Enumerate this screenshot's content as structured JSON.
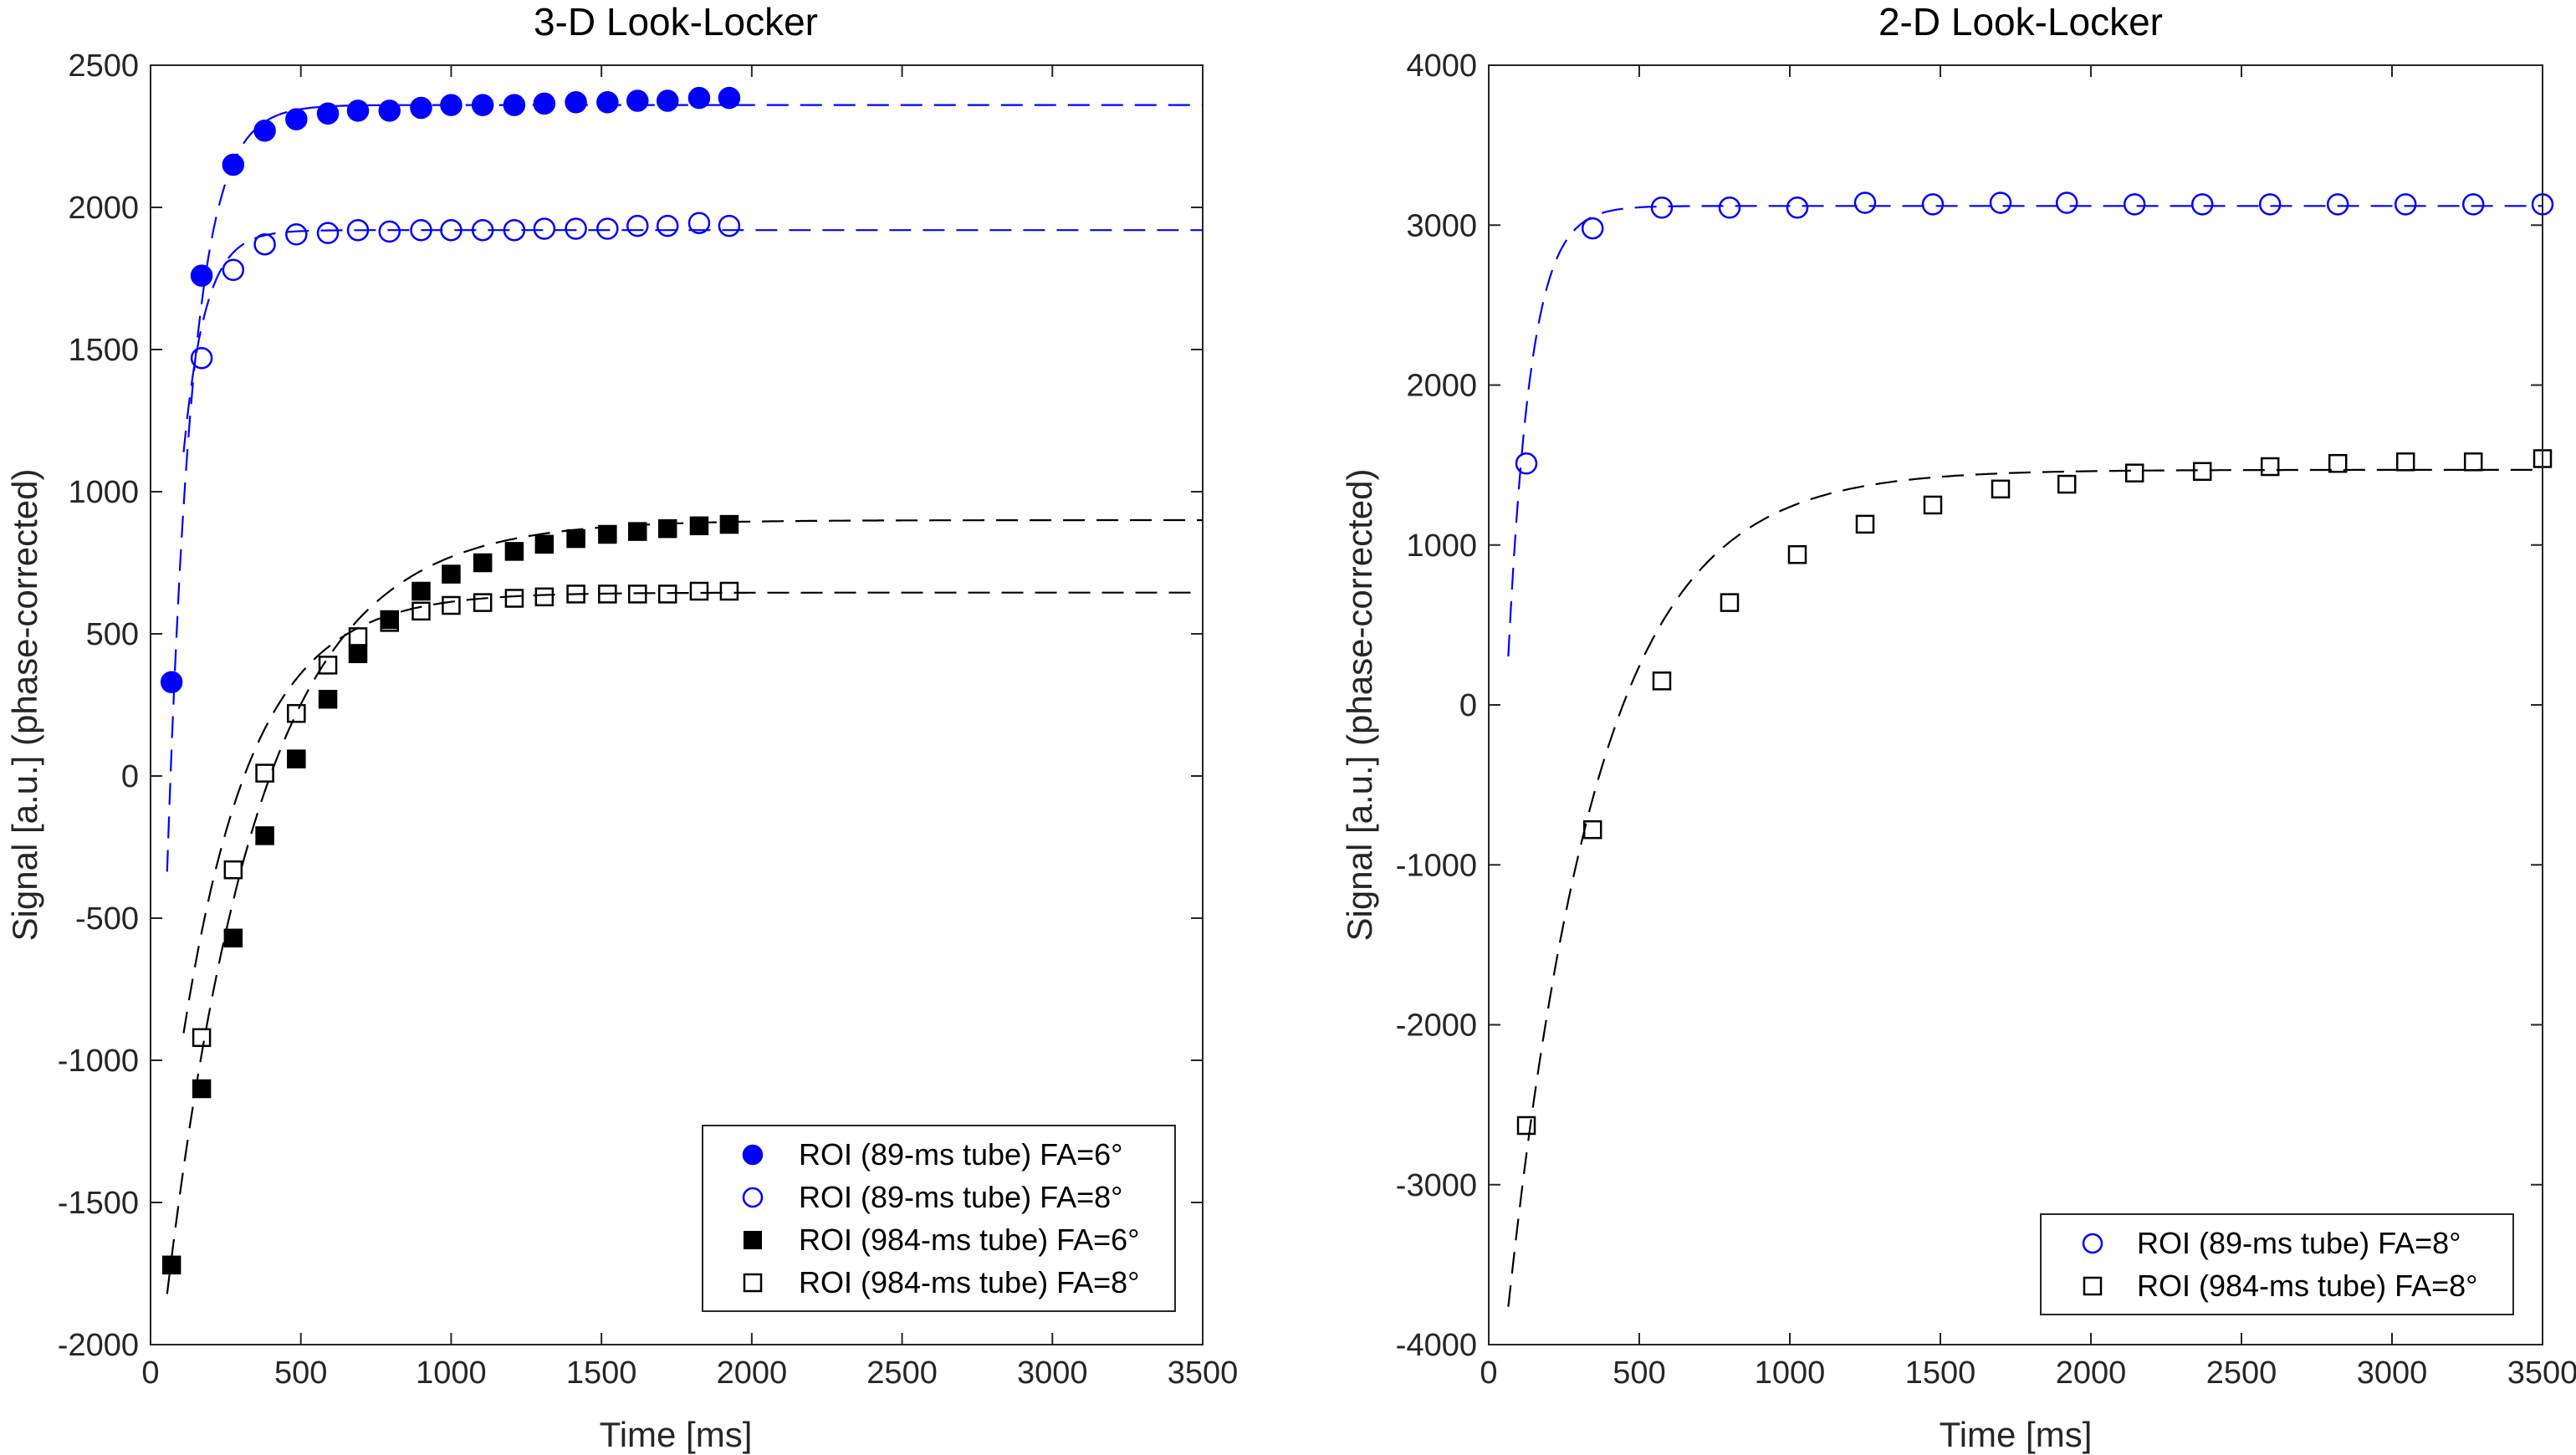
{
  "chart_data": [
    {
      "type": "scatter",
      "title": "3-D  Look-Locker",
      "xlabel": "Time [ms]",
      "ylabel": "Signal [a.u.] (phase-corrected)",
      "xlim": [
        0,
        3500
      ],
      "ylim": [
        -2000,
        2500
      ],
      "xticks": [
        0,
        500,
        1000,
        1500,
        2000,
        2500,
        3000,
        3500
      ],
      "yticks": [
        -2000,
        -1500,
        -1000,
        -500,
        0,
        500,
        1000,
        1500,
        2000,
        2500
      ],
      "legend_position": "bottom-right",
      "series": [
        {
          "name": "ROI (89-ms tube) FA=6°",
          "color": "#0000ff",
          "marker": "circle",
          "filled": true,
          "x": [
            70,
            170,
            275,
            380,
            485,
            590,
            690,
            795,
            900,
            1000,
            1105,
            1210,
            1310,
            1415,
            1520,
            1620,
            1720,
            1825,
            1925
          ],
          "y": [
            330,
            1760,
            2150,
            2270,
            2310,
            2330,
            2340,
            2340,
            2350,
            2360,
            2360,
            2360,
            2365,
            2370,
            2370,
            2375,
            2375,
            2385,
            2385
          ]
        },
        {
          "name": "ROI (89-ms tube) FA=8°",
          "color": "#0000ff",
          "marker": "circle",
          "filled": false,
          "x": [
            170,
            275,
            380,
            485,
            590,
            690,
            795,
            900,
            1000,
            1105,
            1210,
            1310,
            1415,
            1520,
            1620,
            1720,
            1825,
            1925
          ],
          "y": [
            1470,
            1780,
            1870,
            1905,
            1910,
            1920,
            1915,
            1920,
            1920,
            1920,
            1920,
            1925,
            1925,
            1925,
            1935,
            1935,
            1945,
            1935
          ]
        },
        {
          "name": "ROI (984-ms tube) FA=6°",
          "color": "#000000",
          "marker": "square",
          "filled": true,
          "x": [
            70,
            170,
            275,
            380,
            485,
            590,
            690,
            795,
            900,
            1000,
            1105,
            1210,
            1310,
            1415,
            1520,
            1620,
            1720,
            1825,
            1925
          ],
          "y": [
            -1720,
            -1100,
            -570,
            -210,
            60,
            270,
            430,
            550,
            650,
            710,
            750,
            790,
            815,
            835,
            850,
            860,
            870,
            880,
            885
          ]
        },
        {
          "name": "ROI (984-ms tube) FA=8°",
          "color": "#000000",
          "marker": "square",
          "filled": false,
          "x": [
            170,
            275,
            380,
            485,
            590,
            690,
            795,
            900,
            1000,
            1105,
            1210,
            1310,
            1415,
            1520,
            1620,
            1720,
            1825,
            1925
          ],
          "y": [
            -920,
            -330,
            10,
            220,
            390,
            490,
            540,
            580,
            600,
            610,
            625,
            630,
            640,
            640,
            640,
            640,
            650,
            650
          ]
        }
      ],
      "fits": [
        {
          "color": "#0000ff",
          "x0": 55,
          "x1": 3500,
          "A": 2360,
          "B": 5150,
          "T": 85
        },
        {
          "color": "#0000ff",
          "x0": 110,
          "x1": 3500,
          "A": 1920,
          "B": 3600,
          "T": 72
        },
        {
          "color": "#000000",
          "x0": 55,
          "x1": 3500,
          "A": 900,
          "B": 3250,
          "T": 310
        },
        {
          "color": "#000000",
          "x0": 110,
          "x1": 3500,
          "A": 645,
          "B": 2500,
          "T": 230
        }
      ]
    },
    {
      "type": "scatter",
      "title": "2-D  Look-Locker",
      "xlabel": "Time [ms]",
      "ylabel": "Signal [a.u.] (phase-corrected)",
      "xlim": [
        0,
        3500
      ],
      "ylim": [
        -4000,
        4000
      ],
      "xticks": [
        0,
        500,
        1000,
        1500,
        2000,
        2500,
        3000,
        3500
      ],
      "yticks": [
        -4000,
        -3000,
        -2000,
        -1000,
        0,
        1000,
        2000,
        3000,
        4000
      ],
      "legend_position": "bottom-right",
      "series": [
        {
          "name": "ROI (89-ms tube) FA=8°",
          "color": "#0000ff",
          "marker": "circle",
          "filled": false,
          "x": [
            125,
            345,
            575,
            800,
            1025,
            1250,
            1475,
            1700,
            1920,
            2145,
            2370,
            2595,
            2820,
            3045,
            3270,
            3500
          ],
          "y": [
            1510,
            2980,
            3110,
            3110,
            3110,
            3140,
            3130,
            3140,
            3140,
            3130,
            3130,
            3130,
            3130,
            3130,
            3130,
            3130
          ]
        },
        {
          "name": "ROI (984-ms tube) FA=8°",
          "color": "#000000",
          "marker": "square",
          "filled": false,
          "x": [
            125,
            345,
            575,
            800,
            1025,
            1250,
            1475,
            1700,
            1920,
            2145,
            2370,
            2595,
            2820,
            3045,
            3270,
            3500
          ],
          "y": [
            -2630,
            -780,
            150,
            640,
            940,
            1130,
            1250,
            1350,
            1380,
            1450,
            1460,
            1490,
            1510,
            1520,
            1520,
            1540
          ]
        }
      ],
      "fits": [
        {
          "color": "#0000ff",
          "x0": 65,
          "x1": 3500,
          "A": 3120,
          "B": 6700,
          "T": 75
        },
        {
          "color": "#000000",
          "x0": 65,
          "x1": 3500,
          "A": 1470,
          "B": 6500,
          "T": 300
        }
      ]
    }
  ]
}
